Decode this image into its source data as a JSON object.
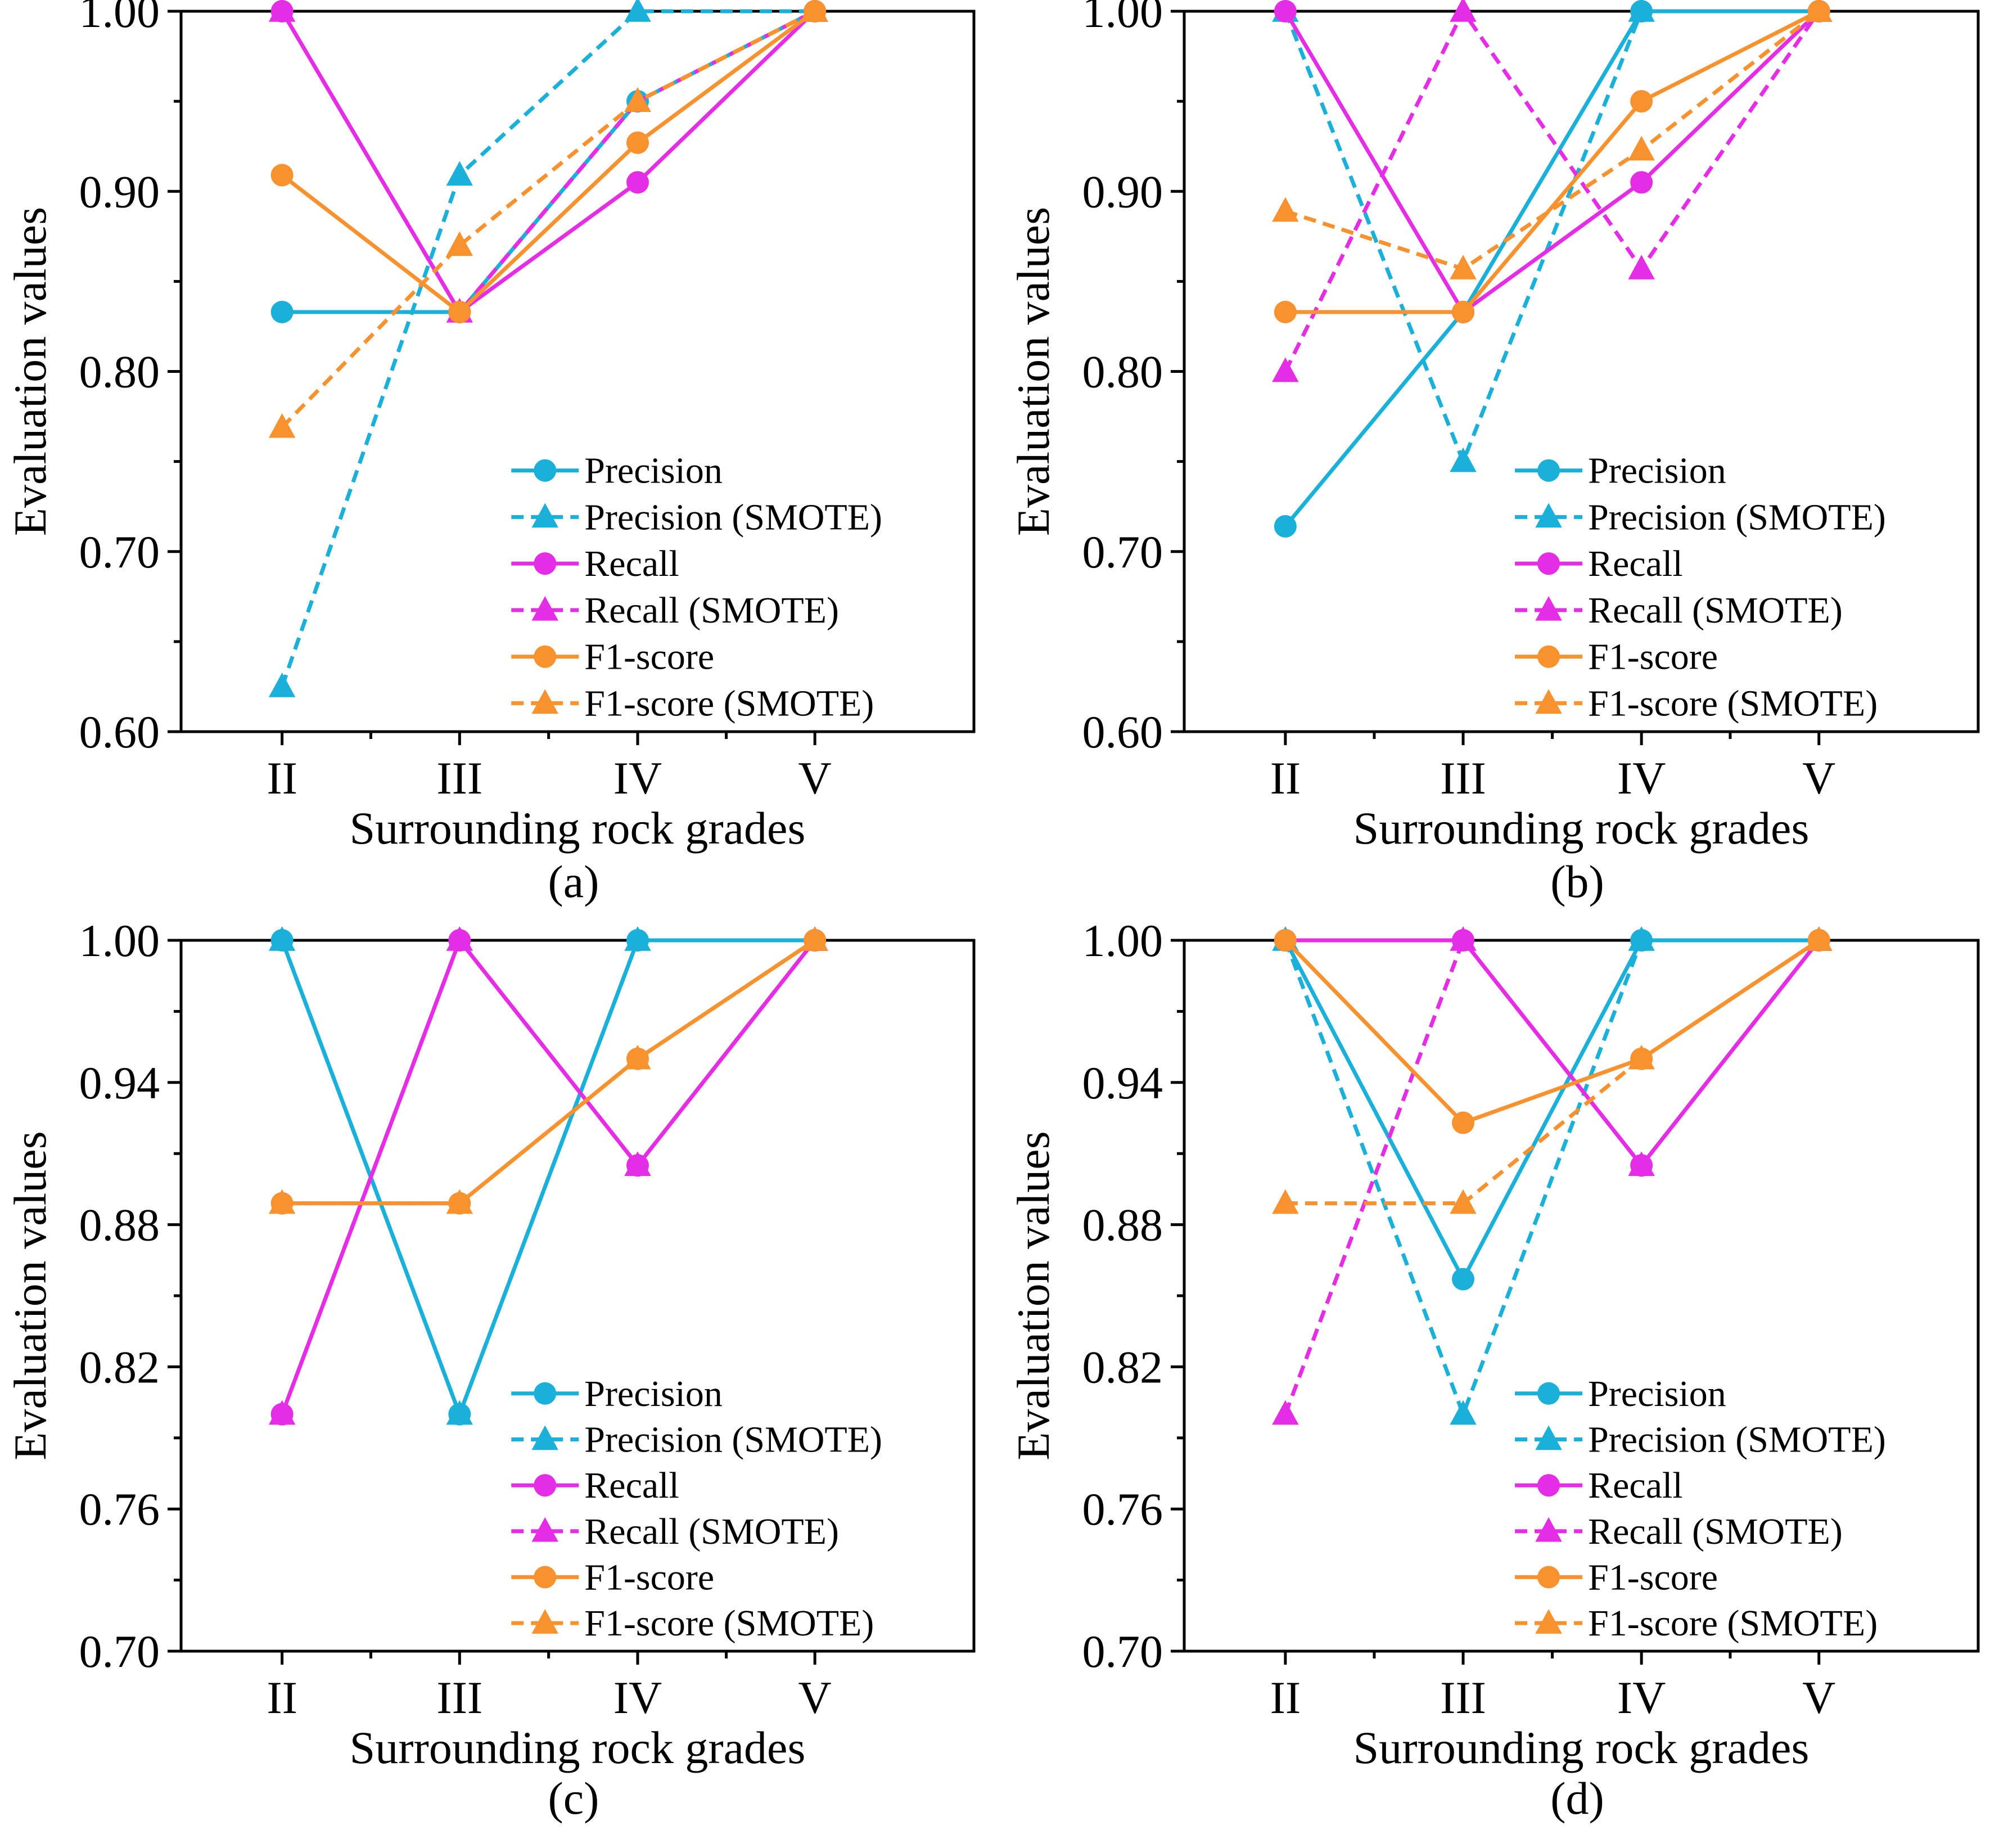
{
  "figure": {
    "series_styles": {
      "Precision": {
        "color": "#1ab0d9",
        "dashed": false,
        "marker": "circle"
      },
      "Precision (SMOTE)": {
        "color": "#1ab0d9",
        "dashed": true,
        "marker": "triangle"
      },
      "Recall": {
        "color": "#e62de6",
        "dashed": false,
        "marker": "circle"
      },
      "Recall (SMOTE)": {
        "color": "#e62de6",
        "dashed": true,
        "marker": "triangle"
      },
      "F1-score": {
        "color": "#f7922e",
        "dashed": false,
        "marker": "circle"
      },
      "F1-score (SMOTE)": {
        "color": "#f7922e",
        "dashed": true,
        "marker": "triangle"
      }
    }
  },
  "chart_data": [
    {
      "panel": "(a)",
      "type": "line",
      "xlabel": "Surrounding rock grades",
      "ylabel": "Evaluation values",
      "categories": [
        "II",
        "III",
        "IV",
        "V"
      ],
      "ylim": [
        0.6,
        1.0
      ],
      "yticks": [
        0.6,
        0.7,
        0.8,
        0.9,
        1.0
      ],
      "ytick_labels": [
        "0.60",
        "0.70",
        "0.80",
        "0.90",
        "1.00"
      ],
      "yminor_step": 0.05,
      "legend_position": "bottom-right",
      "series": [
        {
          "name": "Precision",
          "values": [
            0.833,
            0.833,
            0.95,
            1.0
          ]
        },
        {
          "name": "Precision (SMOTE)",
          "values": [
            0.625,
            0.909,
            1.0,
            1.0
          ]
        },
        {
          "name": "Recall",
          "values": [
            1.0,
            0.833,
            0.905,
            1.0
          ]
        },
        {
          "name": "Recall (SMOTE)",
          "values": [
            1.0,
            0.833,
            0.95,
            1.0
          ]
        },
        {
          "name": "F1-score",
          "values": [
            0.909,
            0.833,
            0.927,
            1.0
          ]
        },
        {
          "name": "F1-score (SMOTE)",
          "values": [
            0.769,
            0.87,
            0.95,
            1.0
          ]
        }
      ]
    },
    {
      "panel": "(b)",
      "type": "line",
      "xlabel": "Surrounding rock grades",
      "ylabel": "Evaluation values",
      "categories": [
        "II",
        "III",
        "IV",
        "V"
      ],
      "ylim": [
        0.6,
        1.0
      ],
      "yticks": [
        0.6,
        0.7,
        0.8,
        0.9,
        1.0
      ],
      "ytick_labels": [
        "0.60",
        "0.70",
        "0.80",
        "0.90",
        "1.00"
      ],
      "yminor_step": 0.05,
      "legend_position": "bottom-right",
      "series": [
        {
          "name": "Precision",
          "values": [
            0.714,
            0.833,
            1.0,
            1.0
          ]
        },
        {
          "name": "Precision (SMOTE)",
          "values": [
            1.0,
            0.75,
            1.0,
            1.0
          ]
        },
        {
          "name": "Recall",
          "values": [
            1.0,
            0.833,
            0.905,
            1.0
          ]
        },
        {
          "name": "Recall (SMOTE)",
          "values": [
            0.8,
            1.0,
            0.857,
            1.0
          ]
        },
        {
          "name": "F1-score",
          "values": [
            0.833,
            0.833,
            0.95,
            1.0
          ]
        },
        {
          "name": "F1-score (SMOTE)",
          "values": [
            0.889,
            0.857,
            0.923,
            1.0
          ]
        }
      ]
    },
    {
      "panel": "(c)",
      "type": "line",
      "xlabel": "Surrounding rock grades",
      "ylabel": "Evaluation values",
      "categories": [
        "II",
        "III",
        "IV",
        "V"
      ],
      "ylim": [
        0.7,
        1.0
      ],
      "yticks": [
        0.7,
        0.76,
        0.82,
        0.88,
        0.94,
        1.0
      ],
      "ytick_labels": [
        "0.70",
        "0.76",
        "0.82",
        "0.88",
        "0.94",
        "1.00"
      ],
      "yminor_step": 0.03,
      "legend_position": "bottom-right",
      "series": [
        {
          "name": "Precision",
          "values": [
            1.0,
            0.8,
            1.0,
            1.0
          ]
        },
        {
          "name": "Precision (SMOTE)",
          "values": [
            1.0,
            0.8,
            1.0,
            1.0
          ]
        },
        {
          "name": "Recall",
          "values": [
            0.8,
            1.0,
            0.905,
            1.0
          ]
        },
        {
          "name": "Recall (SMOTE)",
          "values": [
            0.8,
            1.0,
            0.905,
            1.0
          ]
        },
        {
          "name": "F1-score",
          "values": [
            0.889,
            0.889,
            0.95,
            1.0
          ]
        },
        {
          "name": "F1-score (SMOTE)",
          "values": [
            0.889,
            0.889,
            0.95,
            1.0
          ]
        }
      ]
    },
    {
      "panel": "(d)",
      "type": "line",
      "xlabel": "Surrounding rock grades",
      "ylabel": "Evaluation values",
      "categories": [
        "II",
        "III",
        "IV",
        "V"
      ],
      "ylim": [
        0.7,
        1.0
      ],
      "yticks": [
        0.7,
        0.76,
        0.82,
        0.88,
        0.94,
        1.0
      ],
      "ytick_labels": [
        "0.70",
        "0.76",
        "0.82",
        "0.88",
        "0.94",
        "1.00"
      ],
      "yminor_step": 0.03,
      "legend_position": "bottom-right",
      "series": [
        {
          "name": "Precision",
          "values": [
            1.0,
            0.857,
            1.0,
            1.0
          ]
        },
        {
          "name": "Precision (SMOTE)",
          "values": [
            1.0,
            0.8,
            1.0,
            1.0
          ]
        },
        {
          "name": "Recall",
          "values": [
            1.0,
            1.0,
            0.905,
            1.0
          ]
        },
        {
          "name": "Recall (SMOTE)",
          "values": [
            0.8,
            1.0,
            0.905,
            1.0
          ]
        },
        {
          "name": "F1-score",
          "values": [
            1.0,
            0.923,
            0.95,
            1.0
          ]
        },
        {
          "name": "F1-score (SMOTE)",
          "values": [
            0.889,
            0.889,
            0.95,
            1.0
          ]
        }
      ]
    }
  ]
}
